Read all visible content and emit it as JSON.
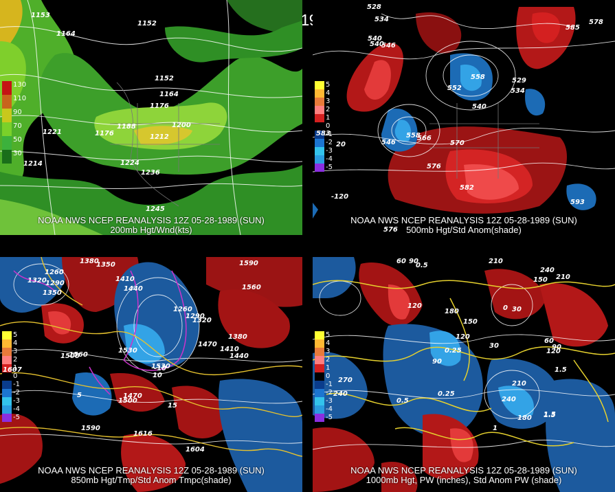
{
  "title": "12Z 05-28-1989 (SUN)",
  "panels": [
    {
      "caption1": "NOAA NWS NCEP REANALYSIS 12Z 05-28-1989 (SUN)",
      "caption2": "200mb Hgt/Wnd(kts)",
      "legend": [
        "130",
        "110",
        "90",
        "70",
        "50",
        "30"
      ],
      "labels": [
        "1164",
        "1152",
        "1152",
        "1164",
        "1176",
        "1188",
        "1200",
        "1212",
        "1224",
        "1236",
        "1176",
        "1153",
        "1221",
        "1214",
        "1245"
      ]
    },
    {
      "caption1": "NOAA NWS NCEP REANALYSIS 12Z 05-28-1989 (SUN)",
      "caption2": "500mb Hgt/Std Anom(shade)",
      "legend": [
        "5",
        "4",
        "3",
        "2",
        "1",
        "0",
        "-1",
        "-2",
        "-3",
        "-4",
        "-5"
      ],
      "labels": [
        "528",
        "534",
        "540",
        "540",
        "546",
        "552",
        "558",
        "529",
        "534",
        "540",
        "546",
        "558",
        "566",
        "570",
        "576",
        "582",
        "593",
        "583",
        "585",
        "578",
        "576",
        "-120",
        "20"
      ]
    },
    {
      "caption1": "NOAA NWS NCEP REANALYSIS 12Z 05-28-1989 (SUN)",
      "caption2": "850mb Hgt/Tmp/Std Anom Tmpc(shade)",
      "legend": [
        "5",
        "4",
        "3",
        "2",
        "1",
        "0",
        "-1",
        "-2",
        "-3",
        "-4",
        "-5"
      ],
      "labels": [
        "1380",
        "1350",
        "1320",
        "1290",
        "1260",
        "1350",
        "1410",
        "1440",
        "1260",
        "1290",
        "1320",
        "1380",
        "1410",
        "1440",
        "1470",
        "1530",
        "1500",
        "1560",
        "1590",
        "1560",
        "1530",
        "1470",
        "1500",
        "1590",
        "1616",
        "1604",
        "1607",
        "-10",
        "10",
        "15",
        "5"
      ]
    },
    {
      "caption1": "NOAA NWS NCEP REANALYSIS 12Z 05-28-1989 (SUN)",
      "caption2": "1000mb Hgt, PW (inches), Std Anom PW (shade)",
      "legend": [
        "5",
        "4",
        "3",
        "2",
        "1",
        "0",
        "-1",
        "-2",
        "-3",
        "-4",
        "-5"
      ],
      "labels": [
        "60",
        "90",
        "0.5",
        "210",
        "0",
        "30",
        "150",
        "120",
        "180",
        "150",
        "240",
        "210",
        "120",
        "90",
        "0.25",
        "30",
        "60",
        "90",
        "120",
        "270",
        "240",
        "0.5",
        "0.25",
        "210",
        "240",
        "180",
        "1.5",
        "1.5",
        "1",
        "1.5"
      ]
    }
  ],
  "colors": {
    "wind": [
      "#1a5e1a",
      "#2c9b2c",
      "#5fd13a",
      "#9be33b",
      "#c7e33b",
      "#e3c23b",
      "#e39b3b"
    ],
    "anom_pos": [
      "#6a0d0d",
      "#a31414",
      "#d42020",
      "#ff5959"
    ],
    "anom_neg": [
      "#0d3f7a",
      "#1c6bb5",
      "#33a3e6",
      "#7fd6f5"
    ],
    "legend_pos": [
      "#ffff33",
      "#ffb833",
      "#ff7f7f",
      "#e03030",
      "#b01818",
      "#700808"
    ],
    "legend_neg": [
      "#0a3c8c",
      "#1c75d1",
      "#33c3ec",
      "#2a7de0",
      "#7a2ee0"
    ],
    "wind_legend": [
      "#c41414",
      "#c8641c",
      "#c8c81c",
      "#7ad12a",
      "#3cb13c",
      "#1a6e1a"
    ]
  }
}
